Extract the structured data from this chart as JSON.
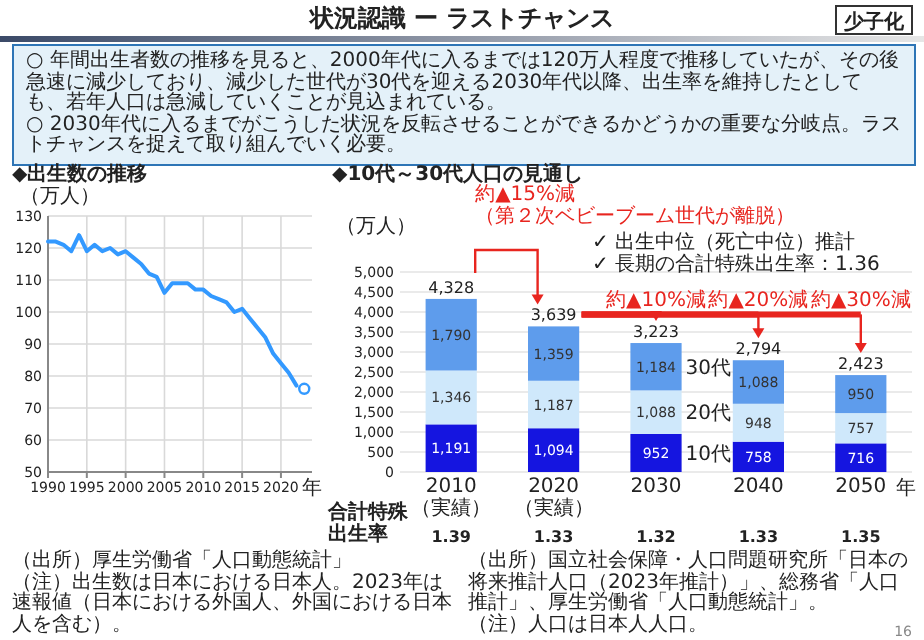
{
  "chart_data": [
    {
      "type": "other",
      "title": "状況認識 ー ラストチャンス",
      "annotations": [
        "少子化",
        "○ 年間出生者数の推移を見ると、2000年代に入るまでは120万人程度で推移していたが、その後急速に減少しており、減少した世代が30代を迎える2030年代以降、出生率を維持したとしても、若年人口は急減していくことが見込まれている。",
        "○ 2030年代に入るまでがこうした状況を反転させることができるかどうかの重要な分岐点。ラストチャンスを捉えて取り組んでいく必要。",
        "16"
      ]
    },
    {
      "type": "line",
      "title": "◆出生数の推移",
      "ylabel": "（万人）",
      "xlabel": "年",
      "xlim": [
        1990,
        2024
      ],
      "ylim": [
        50,
        130
      ],
      "xticks": [
        1990,
        1995,
        2000,
        2005,
        2010,
        2015,
        2020
      ],
      "yticks": [
        50,
        60,
        70,
        80,
        90,
        100,
        110,
        120,
        130
      ],
      "grid": true,
      "series": [
        {
          "color": "#3399ff",
          "marker": "none",
          "x": [
            1990,
            1991,
            1992,
            1993,
            1994,
            1995,
            1996,
            1997,
            1998,
            1999,
            2000,
            2001,
            2002,
            2003,
            2004,
            2005,
            2006,
            2007,
            2008,
            2009,
            2010,
            2011,
            2012,
            2013,
            2014,
            2015,
            2016,
            2017,
            2018,
            2019,
            2020,
            2021,
            2022
          ],
          "values": [
            122,
            122,
            121,
            119,
            124,
            119,
            121,
            119,
            120,
            118,
            119,
            117,
            115,
            112,
            111,
            106,
            109,
            109,
            109,
            107,
            107,
            105,
            104,
            103,
            100,
            101,
            98,
            95,
            92,
            87,
            84,
            81,
            77
          ]
        },
        {
          "type": "scatter",
          "color": "#3399ff",
          "marker": "circle",
          "x": [
            2023
          ],
          "values": [
            76
          ]
        }
      ],
      "annotations": [
        "（出所）厚生労働省「人口動態統計」",
        "（注）出生数は日本における日本人。2023年は速報値（日本における外国人、外国における日本人を含む）。"
      ]
    },
    {
      "type": "bar",
      "stacked": true,
      "title": "◆10代～30代人口の見通し",
      "ylabel": "（万人）",
      "xlabel": "年",
      "categories": [
        "2010（実績）",
        "2020（実績）",
        "2030",
        "2040",
        "2050"
      ],
      "ylim": [
        0,
        5000
      ],
      "yticks": [
        0,
        500,
        {
          "value": 1000,
          "label": "1,000"
        },
        {
          "value": 1500,
          "label": "1,500"
        },
        {
          "value": 2000,
          "label": "2,000"
        },
        {
          "value": 2500,
          "label": "2,500"
        },
        {
          "value": 3000,
          "label": "3,000"
        },
        {
          "value": 3500,
          "label": "3,500"
        },
        {
          "value": 4000,
          "label": "4,000"
        },
        {
          "value": 4500,
          "label": "4,500"
        },
        {
          "value": 5000,
          "label": "5,000"
        }
      ],
      "grid": "y",
      "totals": [
        "4,328",
        "3,639",
        "3,223",
        "2,794",
        "2,423"
      ],
      "series": [
        {
          "name": "10代",
          "color": "#1515e0",
          "values": [
            1191,
            1094,
            952,
            758,
            716
          ],
          "value_labels": [
            "1,191",
            "1,094",
            "952",
            "758",
            "716"
          ]
        },
        {
          "name": "20代",
          "color": "#cfe8fb",
          "values": [
            1346,
            1187,
            1088,
            948,
            757
          ],
          "value_labels": [
            "1,346",
            "1,187",
            "1,088",
            "948",
            "757"
          ]
        },
        {
          "name": "30代",
          "color": "#5e9cec",
          "values": [
            1790,
            1359,
            1184,
            1088,
            950
          ],
          "value_labels": [
            "1,790",
            "1,359",
            "1,184",
            "1,088",
            "950"
          ]
        }
      ],
      "annotations": [
        "約▲15%減",
        "（第２次ベビーブーム世代が離脱）",
        "✓ 出生中位（死亡中位）推計",
        "✓ 長期の合計特殊出生率：1.36",
        "約▲10%減",
        "約▲20%減",
        "約▲30%減",
        "合計特殊出生率",
        "1.39",
        "1.33",
        "1.32",
        "1.33",
        "1.35",
        "（出所）国立社会保障・人口問題研究所「日本の将来推計人口（2023年推計）」、総務省「人口推計」、厚生労働省「人口動態統計」。",
        "（注）人口は日本人人口。"
      ]
    }
  ]
}
